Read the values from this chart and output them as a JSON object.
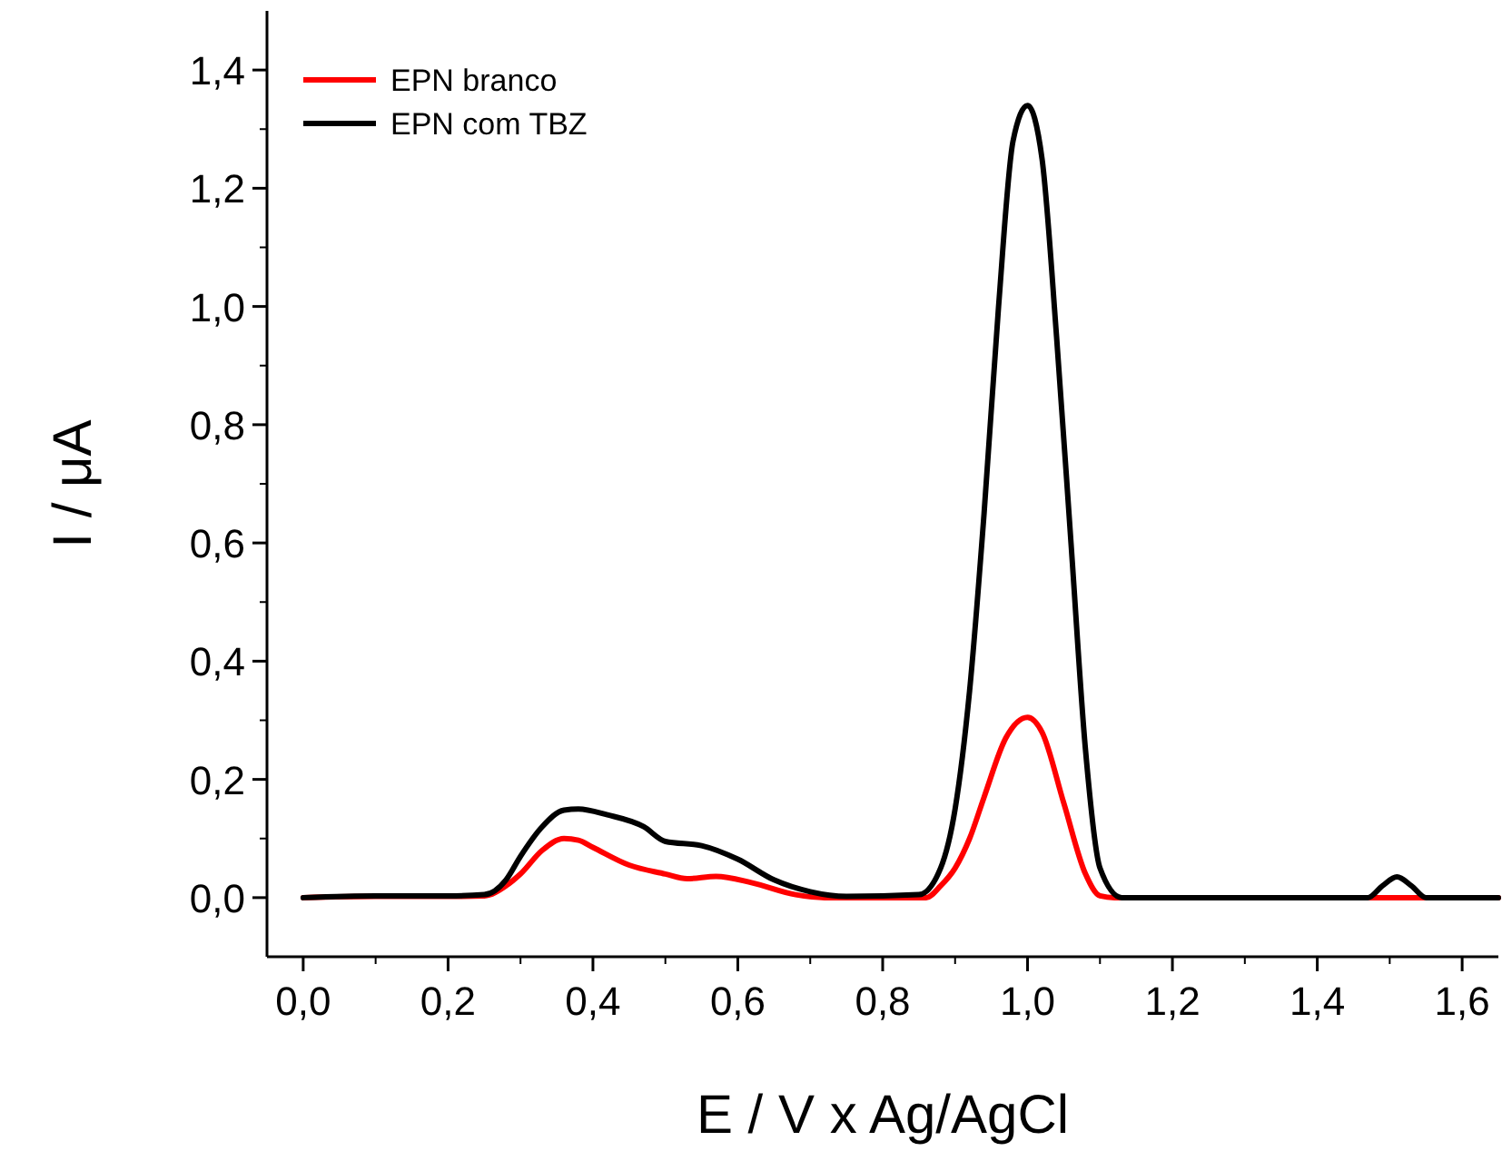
{
  "chart_data": {
    "type": "line",
    "xlabel": "E / V x Ag/AgCl",
    "ylabel": "I / μA",
    "xlim": [
      -0.05,
      1.65
    ],
    "ylim": [
      -0.1,
      1.5
    ],
    "xticks": [
      {
        "value": 0,
        "label": "0,0"
      },
      {
        "value": 0.2,
        "label": "0,2"
      },
      {
        "value": 0.4,
        "label": "0,4"
      },
      {
        "value": 0.6,
        "label": "0,6"
      },
      {
        "value": 0.8,
        "label": "0,8"
      },
      {
        "value": 1,
        "label": "1,0"
      },
      {
        "value": 1.2,
        "label": "1,2"
      },
      {
        "value": 1.4,
        "label": "1,4"
      },
      {
        "value": 1.6,
        "label": "1,6"
      }
    ],
    "yticks": [
      {
        "value": 0,
        "label": "0,0"
      },
      {
        "value": 0.2,
        "label": "0,2"
      },
      {
        "value": 0.4,
        "label": "0,4"
      },
      {
        "value": 0.6,
        "label": "0,6"
      },
      {
        "value": 0.8,
        "label": "0,8"
      },
      {
        "value": 1,
        "label": "1,0"
      },
      {
        "value": 1.2,
        "label": "1,2"
      },
      {
        "value": 1.4,
        "label": "1,4"
      }
    ],
    "legend": "top left",
    "grid": false,
    "line_style": "solid",
    "series": [
      {
        "name": "EPN branco",
        "color": "#ff0000",
        "x": [
          0,
          0.1,
          0.2,
          0.25,
          0.28,
          0.3,
          0.33,
          0.36,
          0.38,
          0.4,
          0.45,
          0.5,
          0.53,
          0.57,
          0.62,
          0.68,
          0.72,
          0.86,
          0.88,
          0.9,
          0.92,
          0.94,
          0.97,
          1.0,
          1.02,
          1.05,
          1.08,
          1.1,
          1.12,
          1.65
        ],
        "values": [
          0,
          0.002,
          0.002,
          0.003,
          0.02,
          0.04,
          0.08,
          0.1,
          0.097,
          0.085,
          0.055,
          0.04,
          0.032,
          0.036,
          0.025,
          0.005,
          0,
          0,
          0.02,
          0.05,
          0.1,
          0.17,
          0.27,
          0.305,
          0.28,
          0.16,
          0.04,
          0.003,
          0,
          0
        ]
      },
      {
        "name": "EPN com TBZ",
        "color": "#000000",
        "x": [
          0,
          0.1,
          0.2,
          0.25,
          0.28,
          0.3,
          0.33,
          0.36,
          0.38,
          0.42,
          0.47,
          0.5,
          0.55,
          0.6,
          0.65,
          0.7,
          0.75,
          0.85,
          0.88,
          0.9,
          0.92,
          0.94,
          0.96,
          0.98,
          1.0,
          1.02,
          1.04,
          1.06,
          1.08,
          1.1,
          1.13,
          1.47,
          1.49,
          1.51,
          1.53,
          1.55,
          1.65
        ],
        "values": [
          0,
          0.003,
          0.003,
          0.005,
          0.03,
          0.07,
          0.12,
          0.148,
          0.15,
          0.14,
          0.12,
          0.095,
          0.088,
          0.065,
          0.03,
          0.01,
          0.002,
          0.005,
          0.05,
          0.15,
          0.35,
          0.65,
          1.0,
          1.28,
          1.34,
          1.25,
          0.95,
          0.6,
          0.25,
          0.05,
          0,
          0,
          0.02,
          0.035,
          0.02,
          0,
          0
        ]
      }
    ]
  }
}
